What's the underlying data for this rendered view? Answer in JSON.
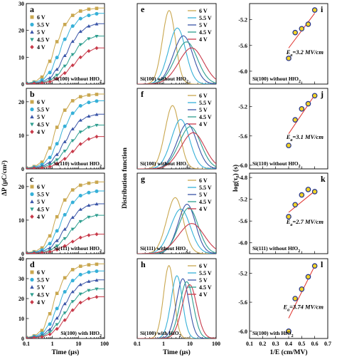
{
  "chart_data": [
    {
      "type": "scatter",
      "id": "a",
      "panel": "a",
      "caption": "Si(100) without HfO2",
      "xscale": "log",
      "xlim": [
        0.1,
        100
      ],
      "ylim": [
        0,
        30
      ],
      "yticks": [
        "0",
        "10",
        "20",
        "30"
      ],
      "ytick_values": [
        0,
        10,
        20,
        30
      ],
      "series": [
        {
          "name": "6 V",
          "color": "#c9a74f",
          "marker": "square",
          "values": [
            0.3,
            0.8,
            2.6,
            8.5,
            15.8,
            22.2,
            25.6,
            27.2,
            27.9,
            28.2
          ]
        },
        {
          "name": "5.5 V",
          "color": "#36b0d8",
          "marker": "circle",
          "values": [
            0.3,
            0.6,
            1.5,
            4.3,
            9.9,
            16.7,
            21.6,
            24.4,
            25.6,
            26.2
          ]
        },
        {
          "name": "5 V",
          "color": "#3a55a8",
          "marker": "triangle",
          "values": [
            0.2,
            0.4,
            0.9,
            2.3,
            5.5,
            10.6,
            15.9,
            19.6,
            21.6,
            22.4
          ]
        },
        {
          "name": "4.5 V",
          "color": "#2e9e8f",
          "marker": "triangle-down",
          "values": [
            0.2,
            0.3,
            0.6,
            1.4,
            3.3,
            6.7,
            11.0,
            14.7,
            16.9,
            17.8
          ]
        },
        {
          "name": "4 V",
          "color": "#c83a4a",
          "marker": "diamond",
          "values": [
            0.1,
            0.2,
            0.4,
            0.9,
            2.0,
            4.1,
            7.0,
            10.0,
            12.3,
            13.4
          ]
        }
      ]
    },
    {
      "type": "scatter",
      "id": "b",
      "panel": "b",
      "caption": "Si(110) without HfO2",
      "xscale": "log",
      "xlim": [
        0.1,
        100
      ],
      "ylim": [
        0,
        24
      ],
      "yticks": [
        "0",
        "10",
        "20"
      ],
      "ytick_values": [
        0,
        10,
        20
      ],
      "series": [
        {
          "name": "6 V",
          "color": "#c9a74f",
          "marker": "square",
          "values": [
            0.3,
            0.7,
            2.0,
            6.2,
            12.4,
            17.5,
            20.3,
            21.5,
            22.0,
            22.2
          ]
        },
        {
          "name": "5.5 V",
          "color": "#36b0d8",
          "marker": "circle",
          "values": [
            0.2,
            0.5,
            1.3,
            3.4,
            7.5,
            12.7,
            16.6,
            18.8,
            19.8,
            20.2
          ]
        },
        {
          "name": "5 V",
          "color": "#3a55a8",
          "marker": "triangle",
          "values": [
            0.2,
            0.3,
            0.8,
            1.9,
            4.3,
            8.1,
            11.9,
            14.5,
            15.7,
            16.2
          ]
        },
        {
          "name": "4.5 V",
          "color": "#2e9e8f",
          "marker": "triangle-down",
          "values": [
            0.1,
            0.2,
            0.5,
            1.2,
            2.7,
            5.3,
            8.4,
            11.0,
            12.4,
            13.0
          ]
        },
        {
          "name": "4 V",
          "color": "#c83a4a",
          "marker": "diamond",
          "values": [
            0.1,
            0.2,
            0.3,
            0.7,
            1.5,
            3.0,
            5.2,
            7.4,
            8.9,
            9.6
          ]
        }
      ]
    },
    {
      "type": "scatter",
      "id": "c",
      "panel": "c",
      "caption": "Si(111) without HfO2",
      "xscale": "log",
      "xlim": [
        0.1,
        100
      ],
      "ylim": [
        0,
        24
      ],
      "yticks": [
        "0",
        "10",
        "20"
      ],
      "ytick_values": [
        0,
        10,
        20
      ],
      "series": [
        {
          "name": "6 V",
          "color": "#c9a74f",
          "marker": "square",
          "values": [
            0.3,
            0.6,
            1.7,
            5.3,
            11.0,
            16.0,
            19.0,
            20.4,
            21.0,
            21.3
          ]
        },
        {
          "name": "5.5 V",
          "color": "#36b0d8",
          "marker": "circle",
          "values": [
            0.2,
            0.4,
            1.1,
            3.0,
            6.8,
            11.6,
            15.3,
            17.3,
            18.2,
            18.6
          ]
        },
        {
          "name": "5 V",
          "color": "#3a55a8",
          "marker": "triangle",
          "values": [
            0.2,
            0.3,
            0.7,
            1.7,
            3.9,
            7.3,
            10.8,
            13.2,
            14.4,
            14.8
          ]
        },
        {
          "name": "4.5 V",
          "color": "#2e9e8f",
          "marker": "triangle-down",
          "values": [
            0.1,
            0.2,
            0.4,
            1.0,
            2.3,
            4.5,
            7.3,
            9.6,
            10.9,
            11.4
          ]
        },
        {
          "name": "4 V",
          "color": "#c83a4a",
          "marker": "diamond",
          "values": [
            0.1,
            0.1,
            0.3,
            0.6,
            1.2,
            2.3,
            3.6,
            4.8,
            5.5,
            5.8
          ]
        }
      ]
    },
    {
      "type": "scatter",
      "id": "d",
      "panel": "d",
      "caption": "Si(100) with HfO2",
      "xscale": "log",
      "xlim": [
        0.1,
        100
      ],
      "ylim": [
        0,
        40
      ],
      "yticks": [
        "0",
        "10",
        "20",
        "30",
        "40"
      ],
      "ytick_values": [
        0,
        10,
        20,
        30,
        40
      ],
      "xticks": [
        "0.1",
        "1",
        "10",
        "100"
      ],
      "xtick_values": [
        0.1,
        1,
        10,
        100
      ],
      "xlabel": "Time (μs)",
      "series": [
        {
          "name": "6 V",
          "color": "#c9a74f",
          "marker": "square",
          "values": [
            0.5,
            1.3,
            4.0,
            12.4,
            22.6,
            30.4,
            34.5,
            36.2,
            36.9,
            37.2
          ]
        },
        {
          "name": "5.5 V",
          "color": "#36b0d8",
          "marker": "circle",
          "values": [
            0.4,
            1.0,
            2.6,
            7.2,
            15.0,
            23.4,
            29.0,
            32.0,
            33.2,
            33.7
          ]
        },
        {
          "name": "5 V",
          "color": "#3a55a8",
          "marker": "triangle",
          "values": [
            0.3,
            0.7,
            1.7,
            4.6,
            10.2,
            17.4,
            23.4,
            27.0,
            28.6,
            29.2
          ]
        },
        {
          "name": "4.5 V",
          "color": "#2e9e8f",
          "marker": "triangle-down",
          "values": [
            0.2,
            0.5,
            1.2,
            3.1,
            7.0,
            12.8,
            18.5,
            22.3,
            24.1,
            24.8
          ]
        },
        {
          "name": "4 V",
          "color": "#c83a4a",
          "marker": "diamond",
          "values": [
            0.2,
            0.4,
            0.8,
            2.1,
            4.8,
            9.2,
            14.2,
            18.0,
            20.0,
            20.8
          ]
        }
      ]
    },
    {
      "type": "line",
      "id": "e",
      "panel": "e",
      "caption": "Si(100) without HfO2",
      "xscale": "log",
      "xlim": [
        0.1,
        100
      ],
      "ylim": [
        0,
        1.35
      ],
      "series": [
        {
          "name": "6 V",
          "color": "#c9a74f",
          "peak_time": 1.5,
          "peak": 1.22,
          "width": 0.25
        },
        {
          "name": "5.5 V",
          "color": "#36b0d8",
          "peak_time": 3.0,
          "peak": 0.93,
          "width": 0.33
        },
        {
          "name": "5 V",
          "color": "#3a55a8",
          "peak_time": 5.0,
          "peak": 0.8,
          "width": 0.38
        },
        {
          "name": "4.5 V",
          "color": "#2e9e8f",
          "peak_time": 6.5,
          "peak": 0.7,
          "width": 0.43
        },
        {
          "name": "4 V",
          "color": "#c83a4a",
          "peak_time": 10.0,
          "peak": 0.6,
          "width": 0.48
        }
      ]
    },
    {
      "type": "line",
      "id": "f",
      "panel": "f",
      "caption": "Si(100) without HfO2",
      "xscale": "log",
      "xlim": [
        0.1,
        100
      ],
      "ylim": [
        0,
        1.35
      ],
      "series": [
        {
          "name": "6 V",
          "color": "#c9a74f",
          "peak_time": 2.0,
          "peak": 1.05,
          "width": 0.28
        },
        {
          "name": "5.5 V",
          "color": "#36b0d8",
          "peak_time": 4.0,
          "peak": 0.82,
          "width": 0.35
        },
        {
          "name": "5 V",
          "color": "#3a55a8",
          "peak_time": 7.0,
          "peak": 0.75,
          "width": 0.38
        },
        {
          "name": "4.5 V",
          "color": "#2e9e8f",
          "peak_time": 9.0,
          "peak": 0.7,
          "width": 0.42
        },
        {
          "name": "4 V",
          "color": "#c83a4a",
          "peak_time": 11.5,
          "peak": 0.6,
          "width": 0.46
        }
      ]
    },
    {
      "type": "line",
      "id": "g",
      "panel": "g",
      "caption": "Si(111) without HfO2",
      "xscale": "log",
      "xlim": [
        0.1,
        100
      ],
      "ylim": [
        0,
        1.35
      ],
      "series": [
        {
          "name": "6 V",
          "color": "#c9a74f",
          "peak_time": 2.5,
          "peak": 0.93,
          "width": 0.32
        },
        {
          "name": "5.5 V",
          "color": "#36b0d8",
          "peak_time": 4.0,
          "peak": 0.74,
          "width": 0.38
        },
        {
          "name": "5 V",
          "color": "#3a55a8",
          "peak_time": 7.0,
          "peak": 0.82,
          "width": 0.34
        },
        {
          "name": "4.5 V",
          "color": "#2e9e8f",
          "peak_time": 8.0,
          "peak": 0.76,
          "width": 0.38
        },
        {
          "name": "4 V",
          "color": "#c83a4a",
          "peak_time": 10.0,
          "peak": 0.5,
          "width": 0.5
        }
      ]
    },
    {
      "type": "line",
      "id": "h",
      "panel": "h",
      "caption": "Si(100) with HfO2",
      "xscale": "log",
      "xlim": [
        0.1,
        100
      ],
      "ylim": [
        0,
        1.35
      ],
      "xticks": [
        "0.1",
        "1",
        "10",
        "100"
      ],
      "xtick_values": [
        0.1,
        1,
        10,
        100
      ],
      "xlabel": "Time (μs)",
      "series": [
        {
          "name": "6 V",
          "color": "#c9a74f",
          "peak_time": 1.5,
          "peak": 1.22,
          "width": 0.2
        },
        {
          "name": "5.5 V",
          "color": "#36b0d8",
          "peak_time": 3.0,
          "peak": 1.05,
          "width": 0.22
        },
        {
          "name": "5 V",
          "color": "#3a55a8",
          "peak_time": 5.0,
          "peak": 1.0,
          "width": 0.24
        },
        {
          "name": "4.5 V",
          "color": "#2e9e8f",
          "peak_time": 7.0,
          "peak": 0.95,
          "width": 0.26
        },
        {
          "name": "4 V",
          "color": "#c83a4a",
          "peak_time": 9.0,
          "peak": 0.9,
          "width": 0.28
        }
      ]
    },
    {
      "type": "scatter",
      "id": "i",
      "panel": "i",
      "caption": "Si(100) without HfO2",
      "xlim": [
        0.1,
        0.7
      ],
      "ylim": [
        -6.2,
        -4.95
      ],
      "yticks": [
        "-5.2",
        "-5.6",
        "-6.0"
      ],
      "ytick_values": [
        -5.2,
        -5.6,
        -6.0
      ],
      "annotation": "E_a=3.2 MV/cm",
      "points": [
        [
          0.4,
          -5.8
        ],
        [
          0.45,
          -5.4
        ],
        [
          0.5,
          -5.34
        ],
        [
          0.55,
          -5.27
        ],
        [
          0.6,
          -5.05
        ]
      ],
      "fit_line": [
        [
          0.4,
          -5.64
        ],
        [
          0.6,
          -5.1
        ]
      ]
    },
    {
      "type": "scatter",
      "id": "j",
      "panel": "j",
      "caption": "Si(110) without HfO2",
      "xlim": [
        0.1,
        0.7
      ],
      "ylim": [
        -6.05,
        -4.95
      ],
      "yticks": [
        "-5.2",
        "-5.6",
        "-6.0"
      ],
      "ytick_values": [
        -5.2,
        -5.6,
        -6.0
      ],
      "annotation": "E_a=3.1 MV/cm",
      "points": [
        [
          0.4,
          -5.73
        ],
        [
          0.45,
          -5.38
        ],
        [
          0.5,
          -5.23
        ],
        [
          0.55,
          -5.16
        ],
        [
          0.6,
          -5.05
        ]
      ],
      "fit_line": [
        [
          0.4,
          -5.57
        ],
        [
          0.6,
          -5.04
        ]
      ]
    },
    {
      "type": "scatter",
      "id": "k",
      "panel": "k",
      "caption": "Si(111) without HfO2",
      "xlim": [
        0.1,
        0.7
      ],
      "ylim": [
        -6.2,
        -4.72
      ],
      "yticks": [
        "-4.8",
        "-5.2",
        "-5.6",
        "-6.0"
      ],
      "ytick_values": [
        -4.8,
        -5.2,
        -5.6,
        -6.0
      ],
      "annotation": "E_a=2.7 MV/cm",
      "points": [
        [
          0.4,
          -5.52
        ],
        [
          0.45,
          -5.3
        ],
        [
          0.5,
          -5.12
        ],
        [
          0.55,
          -5.02
        ],
        [
          0.6,
          -5.06
        ]
      ],
      "fit_line": [
        [
          0.4,
          -5.44
        ],
        [
          0.6,
          -5.05
        ]
      ]
    },
    {
      "type": "scatter",
      "id": "l",
      "panel": "l",
      "caption": "Si(100) with HfO2",
      "xlim": [
        0.1,
        0.7
      ],
      "ylim": [
        -6.1,
        -5.0
      ],
      "yticks": [
        "-5.2",
        "-5.6",
        "-6.0"
      ],
      "ytick_values": [
        -5.2,
        -5.6,
        -6.0
      ],
      "xticks": [
        "0.1",
        "0.2",
        "0.3",
        "0.4",
        "0.5",
        "0.6",
        "0.7"
      ],
      "xtick_values": [
        0.1,
        0.2,
        0.3,
        0.4,
        0.5,
        0.6,
        0.7
      ],
      "xlabel": "1/E (cm/MV)",
      "annotation": "E_a=3.74 MV/cm",
      "points": [
        [
          0.4,
          -6.0
        ],
        [
          0.45,
          -5.55
        ],
        [
          0.5,
          -5.42
        ],
        [
          0.55,
          -5.25
        ],
        [
          0.6,
          -5.1
        ]
      ],
      "fit_line": [
        [
          0.4,
          -5.82
        ],
        [
          0.6,
          -5.1
        ]
      ]
    }
  ],
  "column_labels": {
    "left_ylabel": "ΔP (μC/cm²)",
    "middle_ylabel": "Distribution function",
    "right_ylabel": "log(τ₀) (s)"
  }
}
